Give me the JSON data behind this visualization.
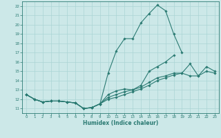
{
  "xlabel": "Humidex (Indice chaleur)",
  "background_color": "#cce8e8",
  "grid_color": "#aad4d4",
  "line_color": "#2a7a72",
  "xlim": [
    -0.5,
    23.5
  ],
  "ylim": [
    10.5,
    22.5
  ],
  "xticks": [
    0,
    1,
    2,
    3,
    4,
    5,
    6,
    7,
    8,
    9,
    10,
    11,
    12,
    13,
    14,
    15,
    16,
    17,
    18,
    19,
    20,
    21,
    22,
    23
  ],
  "yticks": [
    11,
    12,
    13,
    14,
    15,
    16,
    17,
    18,
    19,
    20,
    21,
    22
  ],
  "series": [
    {
      "x": [
        0,
        1,
        2,
        3,
        4,
        5,
        6,
        7,
        8,
        9,
        10,
        11,
        12,
        13,
        14,
        15,
        16,
        17,
        18,
        19,
        20,
        21,
        22,
        23
      ],
      "y": [
        12.5,
        12.0,
        11.7,
        11.8,
        11.8,
        11.7,
        11.6,
        11.0,
        11.1,
        11.5,
        14.8,
        17.2,
        18.5,
        18.5,
        20.2,
        21.2,
        22.1,
        21.5,
        19.0,
        17.0,
        null,
        null,
        null,
        null
      ]
    },
    {
      "x": [
        0,
        1,
        2,
        3,
        4,
        5,
        6,
        7,
        8,
        9,
        10,
        11,
        12,
        13,
        14,
        15,
        16,
        17,
        18,
        19,
        20,
        21,
        22,
        23
      ],
      "y": [
        12.5,
        12.0,
        11.7,
        11.8,
        11.8,
        11.7,
        11.6,
        11.0,
        11.1,
        11.5,
        12.5,
        12.9,
        13.1,
        13.0,
        13.5,
        15.0,
        15.5,
        16.0,
        16.7,
        null,
        null,
        null,
        null,
        null
      ]
    },
    {
      "x": [
        0,
        1,
        2,
        3,
        4,
        5,
        6,
        7,
        8,
        9,
        10,
        11,
        12,
        13,
        14,
        15,
        16,
        17,
        18,
        19,
        20,
        21,
        22,
        23
      ],
      "y": [
        12.5,
        12.0,
        11.7,
        11.8,
        11.8,
        11.7,
        11.6,
        11.0,
        11.1,
        11.5,
        12.2,
        12.5,
        12.8,
        13.0,
        13.3,
        13.8,
        14.3,
        14.5,
        14.8,
        14.8,
        15.8,
        14.5,
        15.5,
        15.0
      ]
    },
    {
      "x": [
        0,
        1,
        2,
        3,
        4,
        5,
        6,
        7,
        8,
        9,
        10,
        11,
        12,
        13,
        14,
        15,
        16,
        17,
        18,
        19,
        20,
        21,
        22,
        23
      ],
      "y": [
        12.5,
        12.0,
        11.7,
        11.8,
        11.8,
        11.7,
        11.6,
        11.0,
        11.1,
        11.5,
        12.0,
        12.2,
        12.5,
        12.8,
        13.1,
        13.5,
        14.0,
        14.3,
        14.6,
        14.8,
        14.5,
        14.5,
        15.0,
        14.8
      ]
    }
  ]
}
